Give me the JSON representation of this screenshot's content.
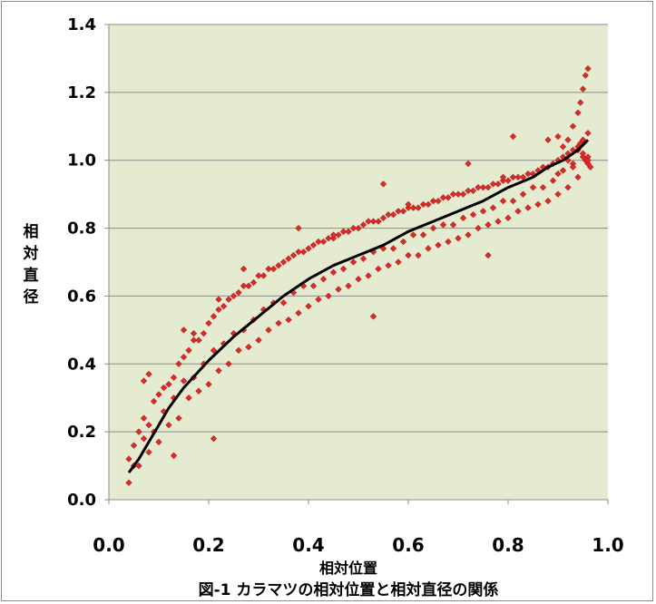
{
  "chart_data": {
    "type": "scatter",
    "title": "",
    "caption": "図-1 カラマツの相対位置と相対直径の関係",
    "xlabel": "相対位置",
    "ylabel": "相対直径",
    "xlim": [
      0.0,
      1.0
    ],
    "ylim": [
      0.0,
      1.4
    ],
    "x_ticks": [
      "0.0",
      "0.2",
      "0.4",
      "0.6",
      "0.8",
      "1.0"
    ],
    "y_ticks": [
      "0.0",
      "0.2",
      "0.4",
      "0.6",
      "0.8",
      "1.0",
      "1.2",
      "1.4"
    ],
    "grid": "horizontal",
    "legend": "none",
    "colors": {
      "plot_background": "#e4ebd0",
      "points": "#e02a2a",
      "point_outline": "#b01818",
      "fit_line": "#000000",
      "grid": "#8c8c8c"
    },
    "series": [
      {
        "type": "scatter",
        "marker": "diamond",
        "x": [
          0.04,
          0.05,
          0.06,
          0.07,
          0.08,
          0.09,
          0.1,
          0.11,
          0.12,
          0.13,
          0.14,
          0.15,
          0.16,
          0.17,
          0.18,
          0.19,
          0.2,
          0.21,
          0.22,
          0.23,
          0.24,
          0.25,
          0.26,
          0.27,
          0.28,
          0.29,
          0.3,
          0.31,
          0.32,
          0.33,
          0.34,
          0.35,
          0.36,
          0.37,
          0.38,
          0.39,
          0.4,
          0.41,
          0.42,
          0.43,
          0.44,
          0.45,
          0.46,
          0.47,
          0.48,
          0.49,
          0.5,
          0.51,
          0.52,
          0.53,
          0.54,
          0.55,
          0.56,
          0.57,
          0.58,
          0.59,
          0.6,
          0.61,
          0.62,
          0.63,
          0.64,
          0.65,
          0.66,
          0.67,
          0.68,
          0.69,
          0.7,
          0.71,
          0.72,
          0.73,
          0.74,
          0.75,
          0.76,
          0.77,
          0.78,
          0.79,
          0.8,
          0.81,
          0.82,
          0.83,
          0.84,
          0.85,
          0.86,
          0.87,
          0.88,
          0.89,
          0.9,
          0.91,
          0.92,
          0.93,
          0.94,
          0.95,
          0.96,
          0.04,
          0.06,
          0.08,
          0.1,
          0.12,
          0.14,
          0.16,
          0.18,
          0.2,
          0.22,
          0.24,
          0.26,
          0.28,
          0.3,
          0.32,
          0.34,
          0.36,
          0.38,
          0.4,
          0.42,
          0.44,
          0.46,
          0.48,
          0.5,
          0.52,
          0.54,
          0.56,
          0.58,
          0.6,
          0.62,
          0.64,
          0.66,
          0.68,
          0.7,
          0.72,
          0.74,
          0.76,
          0.78,
          0.8,
          0.82,
          0.84,
          0.86,
          0.88,
          0.9,
          0.92,
          0.94,
          0.96,
          0.05,
          0.07,
          0.09,
          0.11,
          0.13,
          0.15,
          0.17,
          0.19,
          0.21,
          0.23,
          0.25,
          0.27,
          0.29,
          0.31,
          0.33,
          0.35,
          0.37,
          0.39,
          0.41,
          0.43,
          0.45,
          0.47,
          0.49,
          0.51,
          0.53,
          0.55,
          0.57,
          0.59,
          0.61,
          0.63,
          0.65,
          0.67,
          0.69,
          0.71,
          0.73,
          0.75,
          0.77,
          0.79,
          0.81,
          0.83,
          0.85,
          0.87,
          0.89,
          0.91,
          0.93,
          0.95,
          0.96,
          0.955,
          0.95,
          0.945,
          0.94,
          0.93,
          0.92,
          0.91,
          0.96,
          0.955,
          0.95,
          0.945,
          0.94,
          0.93,
          0.92,
          0.9,
          0.15,
          0.17,
          0.13,
          0.08,
          0.07,
          0.22,
          0.27,
          0.21,
          0.38,
          0.45,
          0.53,
          0.55,
          0.6,
          0.72,
          0.76,
          0.79,
          0.81,
          0.88,
          0.9,
          0.96,
          0.965
        ],
        "y": [
          0.12,
          0.16,
          0.2,
          0.24,
          0.22,
          0.29,
          0.31,
          0.33,
          0.34,
          0.36,
          0.4,
          0.42,
          0.44,
          0.47,
          0.47,
          0.49,
          0.52,
          0.54,
          0.56,
          0.57,
          0.59,
          0.6,
          0.61,
          0.63,
          0.63,
          0.64,
          0.66,
          0.66,
          0.68,
          0.68,
          0.69,
          0.7,
          0.71,
          0.72,
          0.73,
          0.73,
          0.74,
          0.75,
          0.76,
          0.76,
          0.77,
          0.77,
          0.78,
          0.79,
          0.79,
          0.8,
          0.8,
          0.81,
          0.82,
          0.82,
          0.82,
          0.83,
          0.84,
          0.84,
          0.85,
          0.85,
          0.86,
          0.86,
          0.86,
          0.87,
          0.87,
          0.88,
          0.88,
          0.89,
          0.89,
          0.9,
          0.9,
          0.9,
          0.91,
          0.91,
          0.92,
          0.92,
          0.92,
          0.93,
          0.93,
          0.94,
          0.94,
          0.95,
          0.95,
          0.95,
          0.96,
          0.96,
          0.97,
          0.98,
          0.98,
          0.99,
          1.0,
          1.01,
          1.02,
          1.03,
          1.04,
          1.06,
          1.08,
          0.05,
          0.1,
          0.14,
          0.17,
          0.22,
          0.24,
          0.3,
          0.32,
          0.34,
          0.38,
          0.4,
          0.44,
          0.45,
          0.47,
          0.5,
          0.52,
          0.53,
          0.55,
          0.57,
          0.59,
          0.6,
          0.62,
          0.63,
          0.65,
          0.66,
          0.68,
          0.69,
          0.7,
          0.72,
          0.72,
          0.74,
          0.75,
          0.76,
          0.77,
          0.78,
          0.8,
          0.81,
          0.82,
          0.83,
          0.85,
          0.86,
          0.87,
          0.88,
          0.9,
          0.92,
          0.95,
          0.99,
          0.1,
          0.18,
          0.2,
          0.26,
          0.3,
          0.35,
          0.36,
          0.4,
          0.44,
          0.46,
          0.49,
          0.5,
          0.53,
          0.56,
          0.58,
          0.58,
          0.61,
          0.63,
          0.63,
          0.65,
          0.67,
          0.68,
          0.7,
          0.71,
          0.73,
          0.74,
          0.74,
          0.76,
          0.78,
          0.78,
          0.8,
          0.81,
          0.81,
          0.83,
          0.84,
          0.85,
          0.86,
          0.88,
          0.88,
          0.9,
          0.92,
          0.92,
          0.94,
          0.97,
          0.99,
          1.01,
          1.27,
          1.25,
          1.21,
          1.17,
          1.14,
          1.1,
          1.06,
          1.04,
          1.01,
          1.0,
          1.02,
          1.05,
          1.03,
          0.98,
          1.0,
          0.96,
          0.5,
          0.49,
          0.13,
          0.37,
          0.35,
          0.59,
          0.68,
          0.18,
          0.8,
          0.78,
          0.54,
          0.93,
          0.87,
          0.99,
          0.72,
          0.95,
          1.07,
          1.06,
          1.07,
          1.0,
          0.98
        ]
      },
      {
        "type": "line",
        "name": "",
        "x": [
          0.04,
          0.06,
          0.08,
          0.1,
          0.12,
          0.15,
          0.2,
          0.25,
          0.3,
          0.35,
          0.4,
          0.45,
          0.5,
          0.55,
          0.6,
          0.65,
          0.7,
          0.75,
          0.8,
          0.85,
          0.88,
          0.91,
          0.94,
          0.96
        ],
        "y": [
          0.08,
          0.12,
          0.17,
          0.22,
          0.27,
          0.33,
          0.41,
          0.48,
          0.54,
          0.6,
          0.65,
          0.69,
          0.72,
          0.75,
          0.79,
          0.82,
          0.85,
          0.88,
          0.92,
          0.95,
          0.98,
          1.0,
          1.03,
          1.06
        ]
      }
    ]
  }
}
